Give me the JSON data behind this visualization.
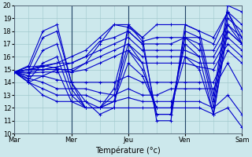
{
  "xlabel": "Température (°c)",
  "xlim": [
    0,
    96
  ],
  "ylim": [
    10,
    20
  ],
  "yticks": [
    10,
    11,
    12,
    13,
    14,
    15,
    16,
    17,
    18,
    19,
    20
  ],
  "day_ticks": [
    0,
    24,
    48,
    72,
    96
  ],
  "day_labels": [
    "Mar",
    "Mer",
    "Jeu",
    "Ven",
    "Sam"
  ],
  "bg_color": "#cce8ec",
  "grid_color": "#a0c8cc",
  "line_color": "#0000cc",
  "marker": "+",
  "linewidth": 0.8,
  "markersize": 3,
  "ensemble": [
    [
      0,
      14.8,
      6,
      15.2,
      12,
      15.3,
      18,
      15.1,
      24,
      14.8,
      30,
      15.5,
      36,
      17.0,
      42,
      18.5,
      48,
      18.3,
      54,
      17.5,
      60,
      18.5,
      66,
      18.5,
      72,
      18.5,
      78,
      18.0,
      84,
      17.5,
      90,
      19.5,
      96,
      17.5
    ],
    [
      0,
      14.8,
      6,
      15.0,
      12,
      15.2,
      18,
      15.5,
      24,
      16.0,
      30,
      16.5,
      36,
      17.5,
      42,
      18.5,
      48,
      18.5,
      54,
      17.2,
      60,
      17.5,
      66,
      17.5,
      72,
      17.5,
      78,
      17.5,
      84,
      17.0,
      90,
      19.5,
      96,
      17.0
    ],
    [
      0,
      14.8,
      6,
      15.0,
      12,
      15.3,
      18,
      15.5,
      24,
      15.5,
      30,
      16.0,
      36,
      17.2,
      42,
      17.5,
      48,
      18.0,
      54,
      17.0,
      60,
      17.0,
      66,
      17.0,
      72,
      17.5,
      78,
      16.5,
      84,
      16.5,
      90,
      18.5,
      96,
      17.0
    ],
    [
      0,
      14.8,
      6,
      15.0,
      12,
      15.0,
      18,
      15.2,
      24,
      15.5,
      30,
      16.0,
      36,
      16.5,
      42,
      17.0,
      48,
      17.5,
      54,
      16.5,
      60,
      16.5,
      66,
      16.5,
      72,
      16.5,
      78,
      16.0,
      84,
      16.0,
      90,
      18.0,
      96,
      17.0
    ],
    [
      0,
      14.8,
      6,
      14.8,
      12,
      15.0,
      18,
      15.0,
      24,
      15.0,
      30,
      15.5,
      36,
      16.0,
      42,
      16.5,
      48,
      17.0,
      54,
      16.0,
      60,
      16.0,
      66,
      16.0,
      72,
      16.0,
      78,
      15.5,
      84,
      15.5,
      90,
      17.5,
      96,
      16.5
    ],
    [
      0,
      14.8,
      6,
      14.7,
      12,
      14.8,
      18,
      14.8,
      24,
      14.8,
      30,
      15.0,
      36,
      15.5,
      42,
      16.0,
      48,
      16.5,
      54,
      15.5,
      60,
      15.5,
      66,
      15.5,
      72,
      15.5,
      78,
      15.2,
      84,
      15.0,
      90,
      17.0,
      96,
      16.0
    ],
    [
      0,
      14.8,
      6,
      14.5,
      12,
      14.5,
      18,
      14.2,
      24,
      14.0,
      30,
      14.0,
      36,
      14.0,
      42,
      14.0,
      48,
      14.5,
      54,
      14.0,
      60,
      14.0,
      66,
      14.0,
      72,
      14.0,
      78,
      14.0,
      84,
      14.0,
      90,
      16.5,
      96,
      15.5
    ],
    [
      0,
      14.8,
      6,
      14.3,
      12,
      14.0,
      18,
      13.5,
      24,
      13.5,
      30,
      13.5,
      36,
      13.2,
      42,
      13.0,
      48,
      13.5,
      54,
      13.0,
      60,
      13.0,
      66,
      13.5,
      72,
      13.5,
      78,
      13.5,
      84,
      13.5,
      90,
      15.5,
      96,
      13.5
    ],
    [
      0,
      14.8,
      6,
      14.0,
      12,
      13.5,
      18,
      13.0,
      24,
      13.0,
      30,
      13.0,
      36,
      12.5,
      42,
      12.5,
      48,
      12.8,
      54,
      12.5,
      60,
      12.5,
      66,
      12.5,
      72,
      12.5,
      78,
      12.5,
      84,
      12.0,
      90,
      13.0,
      96,
      11.5
    ],
    [
      0,
      14.8,
      6,
      14.0,
      12,
      13.0,
      18,
      12.5,
      24,
      12.5,
      30,
      12.5,
      36,
      12.0,
      42,
      12.0,
      48,
      12.0,
      54,
      12.0,
      60,
      12.0,
      66,
      12.0,
      72,
      12.0,
      78,
      12.0,
      84,
      11.5,
      90,
      12.0,
      96,
      10.5
    ],
    [
      0,
      14.8,
      6,
      15.3,
      12,
      18.0,
      18,
      18.5,
      24,
      14.0,
      30,
      12.5,
      36,
      11.5,
      42,
      12.0,
      48,
      18.5,
      54,
      17.5,
      60,
      11.0,
      66,
      11.0,
      72,
      18.5,
      78,
      18.0,
      84,
      13.0,
      90,
      20.0,
      96,
      19.5
    ],
    [
      0,
      14.8,
      6,
      15.0,
      12,
      17.5,
      18,
      18.0,
      24,
      14.0,
      30,
      12.0,
      36,
      12.0,
      42,
      13.5,
      48,
      18.0,
      54,
      17.0,
      60,
      11.5,
      66,
      11.5,
      72,
      18.0,
      78,
      17.5,
      84,
      12.5,
      90,
      19.5,
      96,
      18.5
    ],
    [
      0,
      14.8,
      6,
      14.5,
      12,
      16.5,
      18,
      17.0,
      24,
      13.5,
      30,
      12.0,
      36,
      12.0,
      42,
      13.0,
      48,
      17.0,
      54,
      15.5,
      60,
      11.5,
      66,
      11.5,
      72,
      17.5,
      78,
      17.0,
      84,
      12.0,
      90,
      19.0,
      96,
      18.0
    ],
    [
      0,
      14.8,
      6,
      14.2,
      12,
      15.5,
      18,
      16.0,
      24,
      13.0,
      30,
      12.0,
      36,
      12.0,
      42,
      12.5,
      48,
      16.5,
      54,
      15.0,
      60,
      12.0,
      66,
      12.0,
      72,
      17.0,
      78,
      16.0,
      84,
      11.5,
      90,
      18.5,
      96,
      17.5
    ],
    [
      0,
      14.8,
      6,
      14.0,
      12,
      14.5,
      18,
      15.0,
      24,
      12.5,
      30,
      12.0,
      36,
      12.0,
      42,
      12.5,
      48,
      15.5,
      54,
      14.5,
      60,
      12.0,
      66,
      12.0,
      72,
      16.0,
      78,
      15.0,
      84,
      11.5,
      90,
      18.0,
      96,
      17.0
    ]
  ]
}
